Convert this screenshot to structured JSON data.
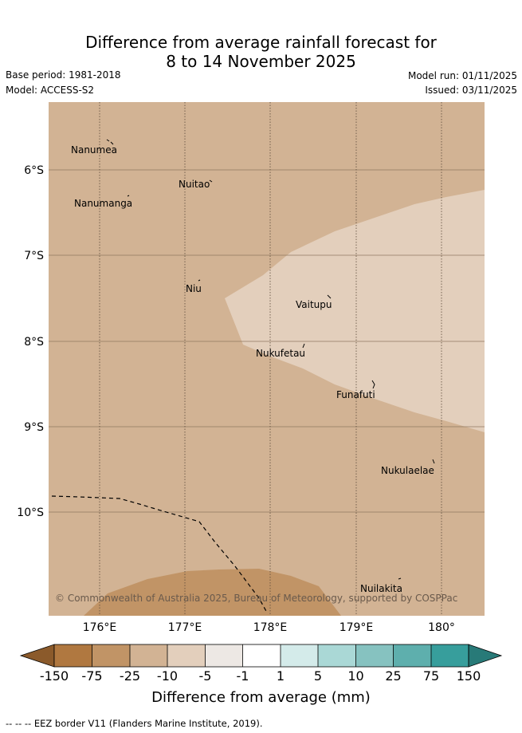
{
  "header": {
    "title_line1": "Difference from average rainfall forecast for",
    "title_line2": "8 to 14 November 2025",
    "base_period": "Base period: 1981-2018",
    "model": "Model: ACCESS-S2",
    "model_run": "Model run: 01/11/2025",
    "issued": "Issued: 03/11/2025"
  },
  "map": {
    "lat_labels": [
      "6°S",
      "7°S",
      "8°S",
      "9°S",
      "10°S"
    ],
    "lon_labels": [
      "176°E",
      "177°E",
      "178°E",
      "179°E",
      "180°"
    ],
    "islands": [
      "Nanumea",
      "Nuitao",
      "Nanumanga",
      "Niu",
      "Vaitupu",
      "Nukufetau",
      "Funafuti",
      "Nukulaelae",
      "Nuilakita"
    ],
    "copyright": "© Commonwealth of Australia 2025, Bureau of Meteorology, supported by COSPPac",
    "colors": {
      "background_category": "#d2b394",
      "light_category": "#e3cfbc",
      "dark_category": "#c19466"
    }
  },
  "colorbar": {
    "tick_labels": [
      "-150",
      "-75",
      "-25",
      "-10",
      "-5",
      "-1",
      "1",
      "5",
      "10",
      "25",
      "75",
      "150"
    ],
    "colors": [
      "#8b5a2b",
      "#b07840",
      "#c19466",
      "#d2b394",
      "#e3cfbc",
      "#ede8e4",
      "#ffffff",
      "#d4ebea",
      "#aad8d6",
      "#86c2c0",
      "#5eafad",
      "#379e9c",
      "#287a78"
    ],
    "title": "Difference from average (mm)"
  },
  "footnote": "-- -- -- EEZ border V11 (Flanders Marine Institute, 2019)."
}
